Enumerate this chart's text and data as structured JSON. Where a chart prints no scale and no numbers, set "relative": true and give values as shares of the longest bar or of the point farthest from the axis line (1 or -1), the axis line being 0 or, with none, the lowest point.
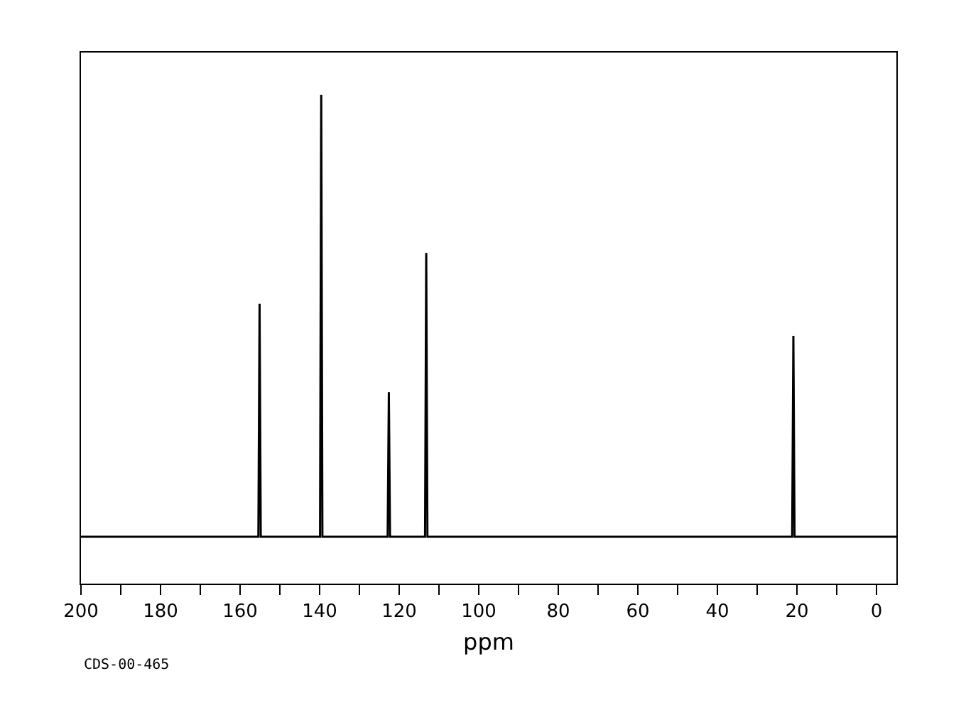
{
  "chart_data": {
    "type": "line",
    "relative": true,
    "xlabel": "ppm",
    "annotations": [
      "CDS-00-465"
    ],
    "x": [
      200,
      155.4,
      155.1,
      154.8,
      139.9,
      139.6,
      139.3,
      122.9,
      122.6,
      122.3,
      113.5,
      113.2,
      112.9,
      21.2,
      20.9,
      20.6,
      -5
    ],
    "series": [
      {
        "color": "#000000",
        "values": [
          0.096,
          0.096,
          0.573,
          0.096,
          0.096,
          1,
          0.096,
          0.096,
          0.392,
          0.096,
          0.096,
          0.677,
          0.096,
          0.096,
          0.507,
          0.096,
          0.096
        ]
      }
    ],
    "xlim": [
      200,
      -5
    ],
    "xticks": [
      200,
      {
        "value": 190,
        "label": null
      },
      180,
      {
        "value": 170,
        "label": null
      },
      160,
      {
        "value": 150,
        "label": null
      },
      140,
      {
        "value": 130,
        "label": null
      },
      120,
      {
        "value": 110,
        "label": null
      },
      100,
      {
        "value": 90,
        "label": null
      },
      80,
      {
        "value": 70,
        "label": null
      },
      60,
      {
        "value": 50,
        "label": null
      },
      40,
      {
        "value": 30,
        "label": null
      },
      20,
      {
        "value": 10,
        "label": null
      },
      0
    ],
    "tick_labels": "x",
    "marker": "none",
    "line_style": "solid",
    "grid": false
  }
}
